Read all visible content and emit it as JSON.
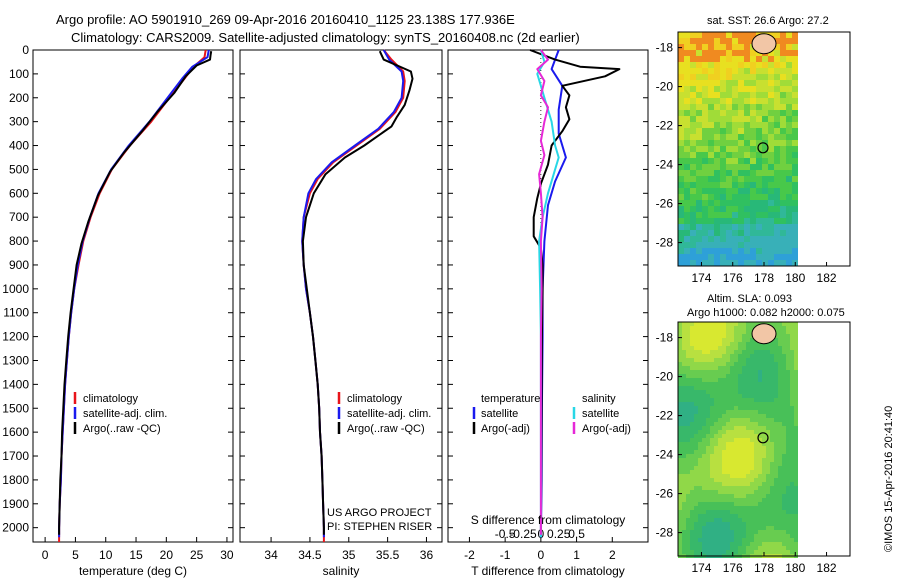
{
  "header": {
    "line1": "Argo profile: AO 5901910_269 09-Apr-2016 20160410_1125 23.138S 177.936E",
    "line2": "Climatology: CARS2009. Satellite-adjusted climatology: synTS_20160408.nc (2d earlier)"
  },
  "colors": {
    "climatology": "#e8141a",
    "satellite": "#1a1aee",
    "argo": "#000000",
    "satellite_salinity": "#28d7e6",
    "argo_salinity": "#e628d7"
  },
  "panels": {
    "temperature": {
      "xlabel": "temperature (deg C)",
      "legend": [
        "climatology",
        "satellite-adj. clim.",
        "Argo(..raw -QC)"
      ]
    },
    "salinity": {
      "xlabel": "salinity",
      "legend": [
        "climatology",
        "satellite-adj. clim.",
        "Argo(..raw -QC)"
      ],
      "credit1": "US ARGO PROJECT",
      "credit2": "PI: STEPHEN RISER"
    },
    "difference": {
      "xlabel": "T difference from climatology",
      "top_label": "S difference from climatology",
      "legend_head_t": "temperature",
      "legend_head_s": "salinity",
      "legend_t": [
        "satellite",
        "Argo(-adj)"
      ],
      "legend_s": [
        "satellite",
        "Argo(-adj)"
      ]
    }
  },
  "maps": {
    "sst_title": "sat. SST: 26.6 Argo: 27.2",
    "sla_title1": "Altim. SLA: 0.093",
    "sla_title2": "Argo h1000: 0.082 h2000: 0.075",
    "x_ticks": [
      "174",
      "176",
      "178",
      "180",
      "182"
    ],
    "y_ticks": [
      "-18",
      "-20",
      "-22",
      "-24",
      "-26",
      "-28"
    ],
    "float_lon": 177.936,
    "float_lat": -23.138
  },
  "watermark": "©IMOS 15-Apr-2016 20:41:40",
  "chart_data": [
    {
      "type": "line",
      "name": "temperature",
      "xlabel": "temperature (deg C)",
      "ylabel": "",
      "xlim": [
        -2,
        31
      ],
      "ylim": [
        2060,
        0
      ],
      "x_ticks": [
        0,
        5,
        10,
        15,
        20,
        25,
        30
      ],
      "y_ticks": [
        0,
        100,
        200,
        300,
        400,
        500,
        600,
        700,
        800,
        900,
        1000,
        1100,
        1200,
        1300,
        1400,
        1500,
        1600,
        1700,
        1800,
        1900,
        2000
      ],
      "series": [
        {
          "name": "climatology",
          "color": "#e8141a",
          "points": [
            [
              26.5,
              0
            ],
            [
              26.3,
              30
            ],
            [
              24.5,
              70
            ],
            [
              23,
              120
            ],
            [
              20.5,
              200
            ],
            [
              17.5,
              300
            ],
            [
              14,
              400
            ],
            [
              11,
              500
            ],
            [
              9,
              600
            ],
            [
              7.5,
              700
            ],
            [
              6.3,
              800
            ],
            [
              5.5,
              900
            ],
            [
              4.8,
              1000
            ],
            [
              4.3,
              1100
            ],
            [
              3.9,
              1200
            ],
            [
              3.6,
              1300
            ],
            [
              3.3,
              1400
            ],
            [
              3.1,
              1500
            ],
            [
              2.9,
              1600
            ],
            [
              2.7,
              1700
            ],
            [
              2.6,
              1800
            ],
            [
              2.4,
              1900
            ],
            [
              2.3,
              2000
            ],
            [
              2.3,
              2060
            ]
          ]
        },
        {
          "name": "satellite-adj. clim.",
          "color": "#1a1aee",
          "points": [
            [
              27,
              0
            ],
            [
              26.8,
              30
            ],
            [
              24.3,
              70
            ],
            [
              22.6,
              120
            ],
            [
              20.2,
              200
            ],
            [
              17.2,
              300
            ],
            [
              13.8,
              400
            ],
            [
              10.9,
              500
            ],
            [
              8.8,
              600
            ],
            [
              7.4,
              700
            ],
            [
              6.2,
              800
            ],
            [
              5.4,
              900
            ],
            [
              4.8,
              1000
            ],
            [
              4.3,
              1100
            ],
            [
              3.9,
              1200
            ],
            [
              3.6,
              1300
            ],
            [
              3.3,
              1400
            ],
            [
              3.1,
              1500
            ],
            [
              2.9,
              1600
            ],
            [
              2.7,
              1700
            ],
            [
              2.6,
              1800
            ],
            [
              2.4,
              1900
            ],
            [
              2.3,
              2000
            ],
            [
              2.3,
              2040
            ]
          ]
        },
        {
          "name": "Argo(..raw -QC)",
          "color": "#000000",
          "points": [
            [
              27.4,
              5
            ],
            [
              27.3,
              20
            ],
            [
              27.2,
              40
            ],
            [
              25,
              65
            ],
            [
              23.2,
              110
            ],
            [
              21.3,
              180
            ],
            [
              18.5,
              260
            ],
            [
              16,
              340
            ],
            [
              13,
              430
            ],
            [
              10.7,
              510
            ],
            [
              8.7,
              610
            ],
            [
              7.1,
              720
            ],
            [
              6,
              810
            ],
            [
              5.2,
              900
            ],
            [
              4.7,
              1000
            ],
            [
              4.2,
              1100
            ],
            [
              3.8,
              1200
            ],
            [
              3.5,
              1300
            ],
            [
              3.2,
              1400
            ],
            [
              3,
              1500
            ],
            [
              2.8,
              1600
            ],
            [
              2.7,
              1700
            ],
            [
              2.5,
              1800
            ],
            [
              2.4,
              1900
            ],
            [
              2.3,
              2000
            ],
            [
              2.3,
              2030
            ]
          ]
        }
      ]
    },
    {
      "type": "line",
      "name": "salinity",
      "xlabel": "salinity",
      "ylabel": "",
      "xlim": [
        33.6,
        36.2
      ],
      "ylim": [
        2060,
        0
      ],
      "x_ticks": [
        34,
        34.5,
        35,
        35.5,
        36
      ],
      "series": [
        {
          "name": "climatology",
          "color": "#e8141a",
          "points": [
            [
              35.45,
              0
            ],
            [
              35.55,
              40
            ],
            [
              35.7,
              90
            ],
            [
              35.72,
              130
            ],
            [
              35.7,
              200
            ],
            [
              35.6,
              260
            ],
            [
              35.4,
              330
            ],
            [
              35.1,
              400
            ],
            [
              34.8,
              470
            ],
            [
              34.6,
              540
            ],
            [
              34.5,
              600
            ],
            [
              34.42,
              700
            ],
            [
              34.4,
              800
            ],
            [
              34.42,
              900
            ],
            [
              34.45,
              1000
            ],
            [
              34.5,
              1100
            ],
            [
              34.54,
              1200
            ],
            [
              34.57,
              1300
            ],
            [
              34.6,
              1400
            ],
            [
              34.62,
              1500
            ],
            [
              34.63,
              1600
            ],
            [
              34.65,
              1700
            ],
            [
              34.66,
              1800
            ],
            [
              34.67,
              1900
            ],
            [
              34.68,
              2000
            ],
            [
              34.68,
              2060
            ]
          ]
        },
        {
          "name": "satellite-adj. clim.",
          "color": "#1a1aee",
          "points": [
            [
              35.45,
              0
            ],
            [
              35.52,
              40
            ],
            [
              35.68,
              90
            ],
            [
              35.7,
              130
            ],
            [
              35.68,
              200
            ],
            [
              35.58,
              260
            ],
            [
              35.38,
              330
            ],
            [
              35.08,
              400
            ],
            [
              34.78,
              470
            ],
            [
              34.58,
              540
            ],
            [
              34.48,
              600
            ],
            [
              34.42,
              700
            ],
            [
              34.4,
              800
            ],
            [
              34.42,
              900
            ],
            [
              34.45,
              1000
            ],
            [
              34.5,
              1100
            ],
            [
              34.54,
              1200
            ],
            [
              34.57,
              1300
            ],
            [
              34.6,
              1400
            ],
            [
              34.62,
              1500
            ],
            [
              34.63,
              1600
            ],
            [
              34.65,
              1700
            ],
            [
              34.66,
              1800
            ],
            [
              34.67,
              1900
            ],
            [
              34.68,
              2000
            ],
            [
              34.68,
              2040
            ]
          ]
        },
        {
          "name": "Argo(..raw -QC)",
          "color": "#000000",
          "points": [
            [
              35.4,
              5
            ],
            [
              35.45,
              40
            ],
            [
              35.8,
              90
            ],
            [
              35.82,
              120
            ],
            [
              35.78,
              170
            ],
            [
              35.72,
              230
            ],
            [
              35.62,
              280
            ],
            [
              35.55,
              320
            ],
            [
              35.2,
              400
            ],
            [
              34.95,
              450
            ],
            [
              34.7,
              520
            ],
            [
              34.55,
              600
            ],
            [
              34.45,
              700
            ],
            [
              34.41,
              800
            ],
            [
              34.42,
              900
            ],
            [
              34.46,
              1000
            ],
            [
              34.5,
              1100
            ],
            [
              34.54,
              1200
            ],
            [
              34.57,
              1300
            ],
            [
              34.6,
              1400
            ],
            [
              34.62,
              1500
            ],
            [
              34.63,
              1600
            ],
            [
              34.65,
              1700
            ],
            [
              34.66,
              1800
            ],
            [
              34.67,
              1900
            ],
            [
              34.68,
              2000
            ],
            [
              34.68,
              2030
            ]
          ]
        }
      ]
    },
    {
      "type": "line",
      "name": "difference",
      "xlabel": "T difference from climatology",
      "ylabel": "",
      "xlim": [
        -2.6,
        3.0
      ],
      "ylim": [
        2060,
        0
      ],
      "x_ticks": [
        -2,
        -1,
        0,
        1,
        2
      ],
      "s_ticks": [
        "-0.5",
        "-0.25",
        "0",
        "0.25",
        "0.5"
      ],
      "series": [
        {
          "name": "satellite (temperature)",
          "color": "#1a1aee",
          "points": [
            [
              0.5,
              0
            ],
            [
              0.4,
              40
            ],
            [
              0.3,
              80
            ],
            [
              0.6,
              150
            ],
            [
              0.5,
              250
            ],
            [
              0.5,
              350
            ],
            [
              0.7,
              450
            ],
            [
              0.4,
              550
            ],
            [
              0.2,
              650
            ],
            [
              0.1,
              800
            ],
            [
              0.05,
              1000
            ],
            [
              0.05,
              1200
            ],
            [
              0.03,
              1500
            ],
            [
              0.02,
              1800
            ],
            [
              0,
              2040
            ]
          ]
        },
        {
          "name": "Argo(-adj) (temperature)",
          "color": "#000000",
          "points": [
            [
              -0.3,
              0
            ],
            [
              0.4,
              40
            ],
            [
              1.1,
              70
            ],
            [
              2.2,
              80
            ],
            [
              1.8,
              110
            ],
            [
              0.6,
              150
            ],
            [
              0.8,
              190
            ],
            [
              0.7,
              240
            ],
            [
              0.8,
              290
            ],
            [
              0.6,
              340
            ],
            [
              0.3,
              400
            ],
            [
              0.2,
              480
            ],
            [
              0,
              560
            ],
            [
              -0.1,
              620
            ],
            [
              -0.2,
              700
            ],
            [
              -0.2,
              780
            ],
            [
              0,
              830
            ],
            [
              0.05,
              900
            ],
            [
              0.05,
              1000
            ],
            [
              0.03,
              1200
            ],
            [
              0.02,
              1500
            ],
            [
              0.01,
              1800
            ],
            [
              0,
              2030
            ]
          ]
        },
        {
          "name": "satellite (salinity)",
          "color": "#28d7e6",
          "points": [
            [
              0,
              0
            ],
            [
              0.1,
              50
            ],
            [
              -0.1,
              100
            ],
            [
              0,
              150
            ],
            [
              0.1,
              200
            ],
            [
              0.3,
              300
            ],
            [
              0.4,
              400
            ],
            [
              0.5,
              450
            ],
            [
              0.4,
              500
            ],
            [
              0.2,
              600
            ],
            [
              0.05,
              700
            ],
            [
              -0.05,
              800
            ],
            [
              -0.02,
              1000
            ],
            [
              0,
              1200
            ],
            [
              0,
              1500
            ],
            [
              0,
              1800
            ],
            [
              0,
              2040
            ]
          ]
        },
        {
          "name": "Argo(-adj) (salinity)",
          "color": "#e628d7",
          "points": [
            [
              0,
              0
            ],
            [
              0.2,
              40
            ],
            [
              -0.1,
              80
            ],
            [
              0.1,
              130
            ],
            [
              0,
              190
            ],
            [
              0.2,
              240
            ],
            [
              0.1,
              300
            ],
            [
              0,
              380
            ],
            [
              0.1,
              440
            ],
            [
              -0.05,
              520
            ],
            [
              0,
              600
            ],
            [
              0.05,
              700
            ],
            [
              0,
              800
            ],
            [
              0.02,
              1000
            ],
            [
              0,
              1200
            ],
            [
              0,
              1500
            ],
            [
              0,
              1800
            ],
            [
              0,
              2030
            ]
          ]
        }
      ]
    }
  ]
}
